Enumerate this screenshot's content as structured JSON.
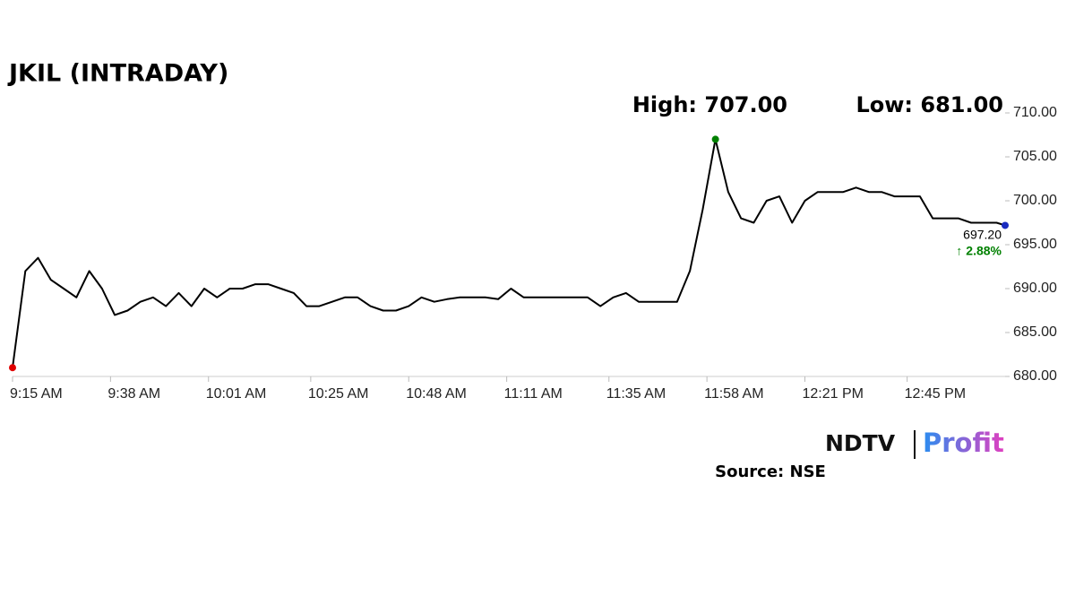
{
  "chart_data": {
    "type": "line",
    "title": "JKIL (INTRADAY)",
    "high_label": "High: 707.00",
    "low_label": "Low: 681.00",
    "last_label": "697.20",
    "change_label": "↑ 2.88%",
    "change_color": "#008000",
    "source": "Source: NSE",
    "logo": {
      "brand": "NDTV",
      "product": "Profit"
    },
    "low_color": "#e00000",
    "high_color": "#008000",
    "last_color": "#1a2cc0",
    "grid": false,
    "x": [
      "9:15 AM",
      "9:18 AM",
      "9:21 AM",
      "9:24 AM",
      "9:27 AM",
      "9:30 AM",
      "9:33 AM",
      "9:36 AM",
      "9:39 AM",
      "9:42 AM",
      "9:45 AM",
      "9:48 AM",
      "9:51 AM",
      "9:54 AM",
      "9:57 AM",
      "10:00 AM",
      "10:03 AM",
      "10:06 AM",
      "10:09 AM",
      "10:12 AM",
      "10:15 AM",
      "10:18 AM",
      "10:21 AM",
      "10:24 AM",
      "10:27 AM",
      "10:30 AM",
      "10:33 AM",
      "10:36 AM",
      "10:39 AM",
      "10:42 AM",
      "10:45 AM",
      "10:48 AM",
      "10:51 AM",
      "10:54 AM",
      "10:57 AM",
      "11:00 AM",
      "11:03 AM",
      "11:06 AM",
      "11:09 AM",
      "11:12 AM",
      "11:15 AM",
      "11:18 AM",
      "11:21 AM",
      "11:24 AM",
      "11:27 AM",
      "11:30 AM",
      "11:33 AM",
      "11:36 AM",
      "11:39 AM",
      "11:42 AM",
      "11:45 AM",
      "11:48 AM",
      "11:51 AM",
      "11:54 AM",
      "11:57 AM",
      "12:00 PM",
      "12:03 PM",
      "12:06 PM",
      "12:09 PM",
      "12:12 PM",
      "12:15 PM",
      "12:18 PM",
      "12:21 PM",
      "12:24 PM",
      "12:27 PM",
      "12:30 PM",
      "12:33 PM",
      "12:36 PM",
      "12:39 PM",
      "12:42 PM",
      "12:45 PM",
      "12:48 PM",
      "12:51 PM",
      "12:54 PM",
      "12:57 PM",
      "1:00 PM",
      "1:03 PM",
      "1:06 PM",
      "1:08 PM"
    ],
    "series": [
      {
        "name": "JKIL",
        "color": "#000000",
        "values": [
          681,
          692,
          693.5,
          691,
          690,
          689,
          692,
          690,
          687,
          687.5,
          688.5,
          689,
          688,
          689.5,
          688,
          690,
          689,
          690,
          690,
          690.5,
          690.5,
          690,
          689.5,
          688,
          688,
          688.5,
          689,
          689,
          688,
          687.5,
          687.5,
          688,
          689,
          688.5,
          688.8,
          689,
          689,
          689,
          688.8,
          690,
          689,
          689,
          689,
          689,
          689,
          689,
          688,
          689,
          689.5,
          688.5,
          688.5,
          688.5,
          688.5,
          692,
          699,
          707,
          701,
          698,
          697.5,
          700,
          700.5,
          697.5,
          700,
          701,
          701,
          701,
          701.5,
          701,
          701,
          700.5,
          700.5,
          700.5,
          698,
          698,
          698,
          697.5,
          697.5,
          697.5,
          697.2
        ]
      }
    ],
    "xticks": [
      "9:15 AM",
      "9:38 AM",
      "10:01 AM",
      "10:25 AM",
      "10:48 AM",
      "11:11 AM",
      "11:35 AM",
      "11:58 AM",
      "12:21 PM",
      "12:45 PM"
    ],
    "ylim": [
      680,
      710
    ],
    "yticks": [
      {
        "value": 680,
        "label": "680.00"
      },
      {
        "value": 685,
        "label": "685.00"
      },
      {
        "value": 690,
        "label": "690.00"
      },
      {
        "value": 695,
        "label": "695.00"
      },
      {
        "value": 700,
        "label": "700.00"
      },
      {
        "value": 705,
        "label": "705.00"
      },
      {
        "value": 710,
        "label": "710.00"
      }
    ]
  }
}
